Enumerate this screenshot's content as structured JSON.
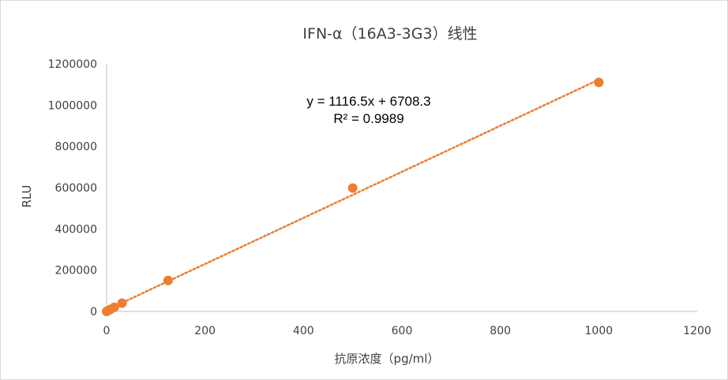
{
  "chart_data": {
    "type": "scatter",
    "title": "IFN-α（16A3-3G3）线性",
    "xlabel": "抗原浓度（pg/ml）",
    "ylabel": "RLU",
    "xlim": [
      0,
      1200
    ],
    "ylim": [
      0,
      1200000
    ],
    "x_ticks": [
      0,
      200,
      400,
      600,
      800,
      1000,
      1200
    ],
    "y_ticks": [
      0,
      200000,
      400000,
      600000,
      800000,
      1000000,
      1200000
    ],
    "x_tick_labels": [
      "0",
      "200",
      "400",
      "600",
      "800",
      "1000",
      "1200"
    ],
    "y_tick_labels": [
      "0",
      "200000",
      "400000",
      "600000",
      "800000",
      "1000000",
      "1200000"
    ],
    "grid": false,
    "legend": "none",
    "series": [
      {
        "color": "#ED7D31",
        "points": [
          {
            "x": 0,
            "y": 0
          },
          {
            "x": 3.9,
            "y": 5000
          },
          {
            "x": 7.8,
            "y": 10000
          },
          {
            "x": 15.6,
            "y": 20000
          },
          {
            "x": 31.25,
            "y": 40000
          },
          {
            "x": 125,
            "y": 150000
          },
          {
            "x": 500,
            "y": 598000
          },
          {
            "x": 1000,
            "y": 1110000
          }
        ]
      }
    ],
    "trendline": {
      "type": "linear",
      "style": "dotted",
      "color": "#ED7D31",
      "slope": 1116.5,
      "intercept": 6708.3,
      "x_range": [
        0,
        1000
      ],
      "equation_label": "y = 1116.5x + 6708.3",
      "r2_label": "R² = 0.9989"
    }
  }
}
